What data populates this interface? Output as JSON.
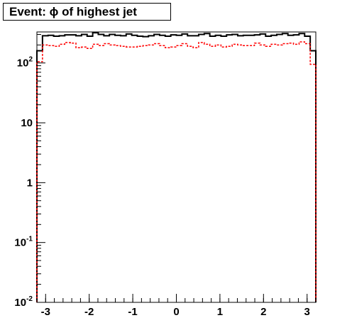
{
  "chart_data": {
    "type": "histogram",
    "title": "Event: ϕ of highest jet",
    "xlabel": "",
    "ylabel": "",
    "xlim": [
      -3.2,
      3.2
    ],
    "ylim": [
      0.01,
      330
    ],
    "yscale": "log",
    "xticks": [
      "-3",
      "-2",
      "-1",
      "0",
      "1",
      "2",
      "3"
    ],
    "yticks": [
      {
        "value": 0.01,
        "mantissa": "10",
        "exp": "-2"
      },
      {
        "value": 0.1,
        "mantissa": "10",
        "exp": "-1"
      },
      {
        "value": 1,
        "mantissa": "1",
        "exp": ""
      },
      {
        "value": 10,
        "mantissa": "10",
        "exp": ""
      },
      {
        "value": 100,
        "mantissa": "10",
        "exp": "2"
      }
    ],
    "bin_edges_start": -3.2,
    "bin_width": 0.128,
    "series": [
      {
        "color": "#000000",
        "style": "solid",
        "values": [
          160,
          285,
          290,
          280,
          285,
          295,
          295,
          285,
          300,
          280,
          320,
          300,
          285,
          300,
          290,
          285,
          305,
          290,
          280,
          275,
          285,
          300,
          290,
          280,
          295,
          290,
          305,
          285,
          285,
          300,
          310,
          280,
          290,
          280,
          295,
          300,
          285,
          290,
          290,
          295,
          305,
          280,
          290,
          300,
          310,
          290,
          295,
          310,
          280,
          160
        ]
      },
      {
        "color": "#ff0000",
        "style": "dashed",
        "values": [
          105,
          200,
          195,
          190,
          205,
          220,
          215,
          180,
          185,
          175,
          205,
          195,
          210,
          200,
          195,
          190,
          185,
          185,
          190,
          195,
          200,
          210,
          195,
          180,
          185,
          195,
          210,
          190,
          180,
          220,
          205,
          190,
          200,
          185,
          190,
          205,
          200,
          195,
          195,
          215,
          200,
          190,
          205,
          200,
          210,
          215,
          205,
          225,
          210,
          95
        ]
      }
    ]
  }
}
